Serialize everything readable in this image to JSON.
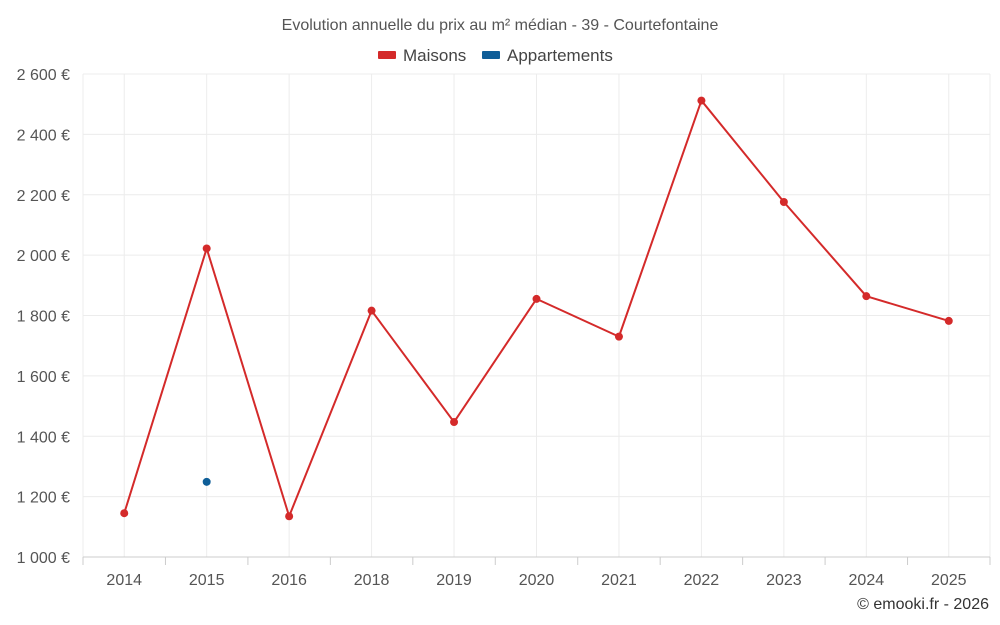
{
  "chart_data": {
    "type": "line",
    "title": "Evolution annuelle du prix au m² médian - 39 - Courtefontaine",
    "categories": [
      "2014",
      "2015",
      "2016",
      "2018",
      "2019",
      "2020",
      "2021",
      "2022",
      "2023",
      "2024",
      "2025"
    ],
    "series": [
      {
        "name": "Maisons",
        "color": "#d42a2a",
        "values": [
          1145,
          2022,
          1135,
          1816,
          1447,
          1855,
          1730,
          2512,
          2176,
          1864,
          1782
        ]
      },
      {
        "name": "Appartements",
        "color": "#0f5e98",
        "values": [
          null,
          1249,
          null,
          null,
          null,
          null,
          null,
          null,
          null,
          null,
          null
        ]
      }
    ],
    "ylim": [
      1000,
      2600
    ],
    "yticks": [
      1000,
      1200,
      1400,
      1600,
      1800,
      2000,
      2200,
      2400,
      2600
    ],
    "ytick_labels": [
      "1 000 €",
      "1 200 €",
      "1 400 €",
      "1 600 €",
      "1 800 €",
      "2 000 €",
      "2 200 €",
      "2 400 €",
      "2 600 €"
    ],
    "xlabel": "",
    "ylabel": "",
    "grid": true,
    "legend": "top-center"
  },
  "credit": "© emooki.fr - 2026"
}
